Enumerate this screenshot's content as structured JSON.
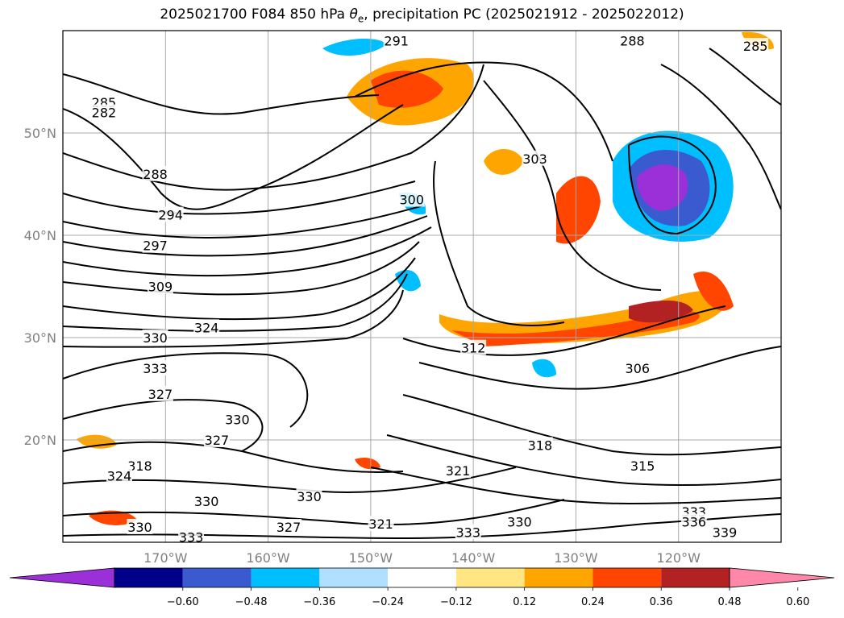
{
  "figure": {
    "title_prefix": "2025021700 F084 850 hPa ",
    "title_symbol": "θ",
    "title_subscript": "e",
    "title_suffix": ", precipitation PC (2025021912 - 2025022012)"
  },
  "chart_data": {
    "type": "contour-map",
    "lat_range": [
      10,
      60
    ],
    "lon_range": [
      -180,
      -110
    ],
    "lat_ticks": [
      {
        "value": 20,
        "label": "20°N"
      },
      {
        "value": 30,
        "label": "30°N"
      },
      {
        "value": 40,
        "label": "40°N"
      },
      {
        "value": 50,
        "label": "50°N"
      }
    ],
    "lon_ticks": [
      {
        "value": -170,
        "label": "170°W"
      },
      {
        "value": -160,
        "label": "160°W"
      },
      {
        "value": -150,
        "label": "150°W"
      },
      {
        "value": -140,
        "label": "140°W"
      },
      {
        "value": -130,
        "label": "130°W"
      },
      {
        "value": -120,
        "label": "120°W"
      }
    ],
    "grid": true,
    "colorbar": {
      "levels": [
        -0.6,
        -0.48,
        -0.36,
        -0.24,
        -0.12,
        0.12,
        0.24,
        0.36,
        0.48,
        0.6
      ],
      "labels": [
        "−0.60",
        "−0.48",
        "−0.36",
        "−0.24",
        "−0.12",
        "0.12",
        "0.24",
        "0.36",
        "0.48",
        "0.60"
      ],
      "colors": [
        "#9b30d8",
        "#00008b",
        "#3a5bd0",
        "#00bfff",
        "#b0e0ff",
        "#ffffff",
        "#ffe680",
        "#ffa500",
        "#ff4500",
        "#b22222",
        "#ff88aa"
      ],
      "extend": "both"
    },
    "contour_labels": [
      {
        "text": "291",
        "lon": -147.5,
        "lat": 59.0
      },
      {
        "text": "285",
        "lon": -176.0,
        "lat": 53.0
      },
      {
        "text": "282",
        "lon": -176.0,
        "lat": 52.0
      },
      {
        "text": "288",
        "lon": -171.0,
        "lat": 46.0
      },
      {
        "text": "294",
        "lon": -169.5,
        "lat": 42.0
      },
      {
        "text": "297",
        "lon": -171.0,
        "lat": 39.0
      },
      {
        "text": "309",
        "lon": -170.5,
        "lat": 35.0
      },
      {
        "text": "324",
        "lon": -166.0,
        "lat": 31.0
      },
      {
        "text": "330",
        "lon": -171.0,
        "lat": 30.0
      },
      {
        "text": "333",
        "lon": -171.0,
        "lat": 27.0
      },
      {
        "text": "327",
        "lon": -170.5,
        "lat": 24.5
      },
      {
        "text": "330",
        "lon": -163.0,
        "lat": 22.0
      },
      {
        "text": "327",
        "lon": -165.0,
        "lat": 20.0
      },
      {
        "text": "318",
        "lon": -172.5,
        "lat": 17.5
      },
      {
        "text": "324",
        "lon": -174.5,
        "lat": 16.5
      },
      {
        "text": "330",
        "lon": -166.0,
        "lat": 14.0
      },
      {
        "text": "330",
        "lon": -156.0,
        "lat": 14.5
      },
      {
        "text": "327",
        "lon": -158.0,
        "lat": 11.5
      },
      {
        "text": "321",
        "lon": -149.0,
        "lat": 11.8
      },
      {
        "text": "330",
        "lon": -172.5,
        "lat": 11.5
      },
      {
        "text": "333",
        "lon": -167.5,
        "lat": 10.5
      },
      {
        "text": "333",
        "lon": -140.5,
        "lat": 11.0
      },
      {
        "text": "330",
        "lon": -135.5,
        "lat": 12.0
      },
      {
        "text": "321",
        "lon": -141.5,
        "lat": 17.0
      },
      {
        "text": "318",
        "lon": -133.5,
        "lat": 19.5
      },
      {
        "text": "315",
        "lon": -123.5,
        "lat": 17.5
      },
      {
        "text": "306",
        "lon": -124.0,
        "lat": 27.0
      },
      {
        "text": "312",
        "lon": -140.0,
        "lat": 29.0
      },
      {
        "text": "300",
        "lon": -146.0,
        "lat": 43.5
      },
      {
        "text": "303",
        "lon": -134.0,
        "lat": 47.5
      },
      {
        "text": "288",
        "lon": -124.5,
        "lat": 59.0
      },
      {
        "text": "285",
        "lon": -112.5,
        "lat": 58.5
      },
      {
        "text": "333",
        "lon": -118.5,
        "lat": 13.0
      },
      {
        "text": "336",
        "lon": -118.5,
        "lat": 12.0
      },
      {
        "text": "339",
        "lon": -115.5,
        "lat": 11.0
      }
    ]
  }
}
